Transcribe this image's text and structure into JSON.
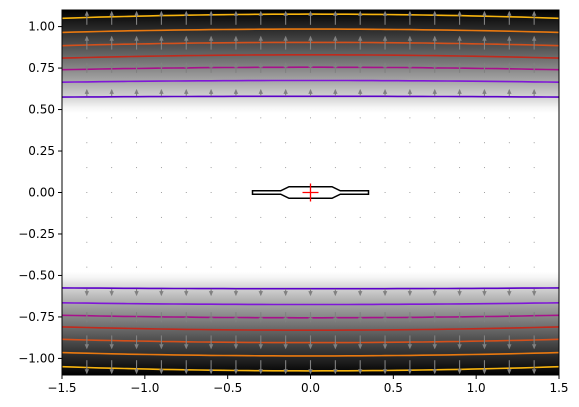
{
  "chart_data": {
    "type": "heatmap",
    "title": "",
    "xlabel": "",
    "ylabel": "",
    "xlim": [
      -1.5,
      1.5
    ],
    "ylim": [
      -1.1,
      1.1
    ],
    "x_ticks": [
      -1.5,
      -1.0,
      -0.5,
      0.0,
      0.5,
      1.0,
      1.5
    ],
    "x_tick_labels": [
      "−1.5",
      "−1.0",
      "−0.5",
      "0.0",
      "0.5",
      "1.0",
      "1.5"
    ],
    "y_ticks": [
      -1.0,
      -0.75,
      -0.5,
      -0.25,
      0.0,
      0.25,
      0.5,
      0.75,
      1.0
    ],
    "y_tick_labels": [
      "−1.00",
      "−0.75",
      "−0.50",
      "−0.25",
      "0.00",
      "0.25",
      "0.50",
      "0.75",
      "1.00"
    ],
    "grid": false,
    "background": {
      "colormap": "gray_reversed",
      "dark_color": "#000000",
      "light_color": "#ffffff",
      "white_band_half_height": 0.5
    },
    "contours": [
      {
        "level": 1,
        "color": "#5b00c9",
        "y_center": 0.58,
        "y_edge": 0.575
      },
      {
        "level": 2,
        "color": "#7f16d8",
        "y_center": 0.675,
        "y_edge": 0.665
      },
      {
        "level": 3,
        "color": "#a8108c",
        "y_center": 0.755,
        "y_edge": 0.74
      },
      {
        "level": 4,
        "color": "#c1291c",
        "y_center": 0.83,
        "y_edge": 0.81
      },
      {
        "level": 5,
        "color": "#d4501b",
        "y_center": 0.905,
        "y_edge": 0.885
      },
      {
        "level": 6,
        "color": "#e8780f",
        "y_center": 0.985,
        "y_edge": 0.965
      },
      {
        "level": 7,
        "color": "#f7b40e",
        "y_center": 1.075,
        "y_edge": 1.05
      }
    ],
    "quiver": {
      "x": [
        -1.35,
        -1.2,
        -1.05,
        -0.9,
        -0.75,
        -0.6,
        -0.45,
        -0.3,
        -0.15,
        0.0,
        0.15,
        0.3,
        0.45,
        0.6,
        0.75,
        0.9,
        1.05,
        1.2,
        1.35
      ],
      "y": [
        -1.05,
        -0.9,
        -0.75,
        -0.6,
        -0.45,
        -0.3,
        -0.15,
        0.0,
        0.15,
        0.3,
        0.45,
        0.6,
        0.75,
        0.9,
        1.05
      ],
      "color": "#808080",
      "direction": "outward-vertical"
    },
    "foil": {
      "points": [
        [
          -0.35,
          0.01
        ],
        [
          -0.18,
          0.01
        ],
        [
          -0.13,
          0.035
        ],
        [
          0.13,
          0.035
        ],
        [
          0.18,
          0.01
        ],
        [
          0.35,
          0.01
        ],
        [
          0.35,
          -0.01
        ],
        [
          0.18,
          -0.01
        ],
        [
          0.13,
          -0.035
        ],
        [
          -0.13,
          -0.035
        ],
        [
          -0.18,
          -0.01
        ],
        [
          -0.35,
          -0.01
        ]
      ],
      "color": "#000000"
    },
    "marker": {
      "x": 0.0,
      "y": 0.0,
      "symbol": "+",
      "color": "#ff0000"
    }
  }
}
